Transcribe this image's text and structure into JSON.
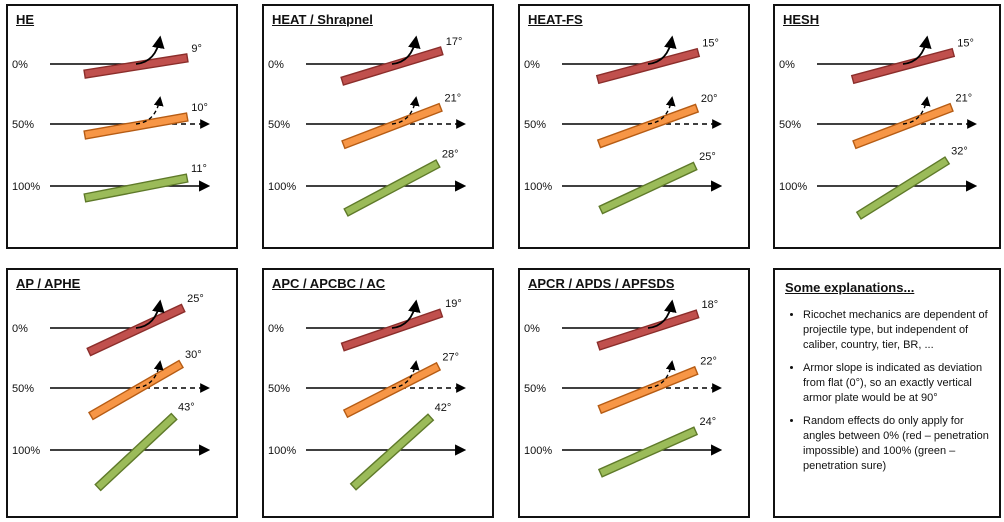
{
  "colors": {
    "red": "#c0504d",
    "red_border": "#8b2e2b",
    "orange": "#f79646",
    "orange_border": "#b65c14",
    "green": "#9bbb59",
    "green_border": "#5f7a2a",
    "arrow": "#000000"
  },
  "panels": [
    {
      "title": "HE",
      "rows": [
        {
          "label": "0%",
          "angle": "9°",
          "angle_deg": 9,
          "outcome": "ricochet"
        },
        {
          "label": "50%",
          "angle": "10°",
          "angle_deg": 10,
          "outcome": "random"
        },
        {
          "label": "100%",
          "angle": "11°",
          "angle_deg": 11,
          "outcome": "penetration"
        }
      ]
    },
    {
      "title": "HEAT / Shrapnel",
      "rows": [
        {
          "label": "0%",
          "angle": "17°",
          "angle_deg": 17,
          "outcome": "ricochet"
        },
        {
          "label": "50%",
          "angle": "21°",
          "angle_deg": 21,
          "outcome": "random"
        },
        {
          "label": "100%",
          "angle": "28°",
          "angle_deg": 28,
          "outcome": "penetration"
        }
      ]
    },
    {
      "title": "HEAT-FS",
      "rows": [
        {
          "label": "0%",
          "angle": "15°",
          "angle_deg": 15,
          "outcome": "ricochet"
        },
        {
          "label": "50%",
          "angle": "20°",
          "angle_deg": 20,
          "outcome": "random"
        },
        {
          "label": "100%",
          "angle": "25°",
          "angle_deg": 25,
          "outcome": "penetration"
        }
      ]
    },
    {
      "title": "HESH",
      "rows": [
        {
          "label": "0%",
          "angle": "15°",
          "angle_deg": 15,
          "outcome": "ricochet"
        },
        {
          "label": "50%",
          "angle": "21°",
          "angle_deg": 21,
          "outcome": "random"
        },
        {
          "label": "100%",
          "angle": "32°",
          "angle_deg": 32,
          "outcome": "penetration"
        }
      ]
    },
    {
      "title": "AP / APHE",
      "rows": [
        {
          "label": "0%",
          "angle": "25°",
          "angle_deg": 25,
          "outcome": "ricochet"
        },
        {
          "label": "50%",
          "angle": "30°",
          "angle_deg": 30,
          "outcome": "random"
        },
        {
          "label": "100%",
          "angle": "43°",
          "angle_deg": 43,
          "outcome": "penetration"
        }
      ]
    },
    {
      "title": "APC / APCBC / AC",
      "rows": [
        {
          "label": "0%",
          "angle": "19°",
          "angle_deg": 19,
          "outcome": "ricochet"
        },
        {
          "label": "50%",
          "angle": "27°",
          "angle_deg": 27,
          "outcome": "random"
        },
        {
          "label": "100%",
          "angle": "42°",
          "angle_deg": 42,
          "outcome": "penetration"
        }
      ]
    },
    {
      "title": "APCR / APDS / APFSDS",
      "rows": [
        {
          "label": "0%",
          "angle": "18°",
          "angle_deg": 18,
          "outcome": "ricochet"
        },
        {
          "label": "50%",
          "angle": "22°",
          "angle_deg": 22,
          "outcome": "random"
        },
        {
          "label": "100%",
          "angle": "24°",
          "angle_deg": 24,
          "outcome": "penetration"
        }
      ]
    }
  ],
  "explanations": {
    "title": "Some explanations...",
    "items": [
      "Ricochet mechanics are dependent of projectile type, but independent of caliber, country, tier, BR,   ...",
      "Armor slope is indicated as deviation from flat (0°), so an exactly vertical armor plate would be at 90°",
      "Random effects do only apply for angles between  0% (red – penetration impossible) and 100% (green – penetration sure)"
    ]
  }
}
